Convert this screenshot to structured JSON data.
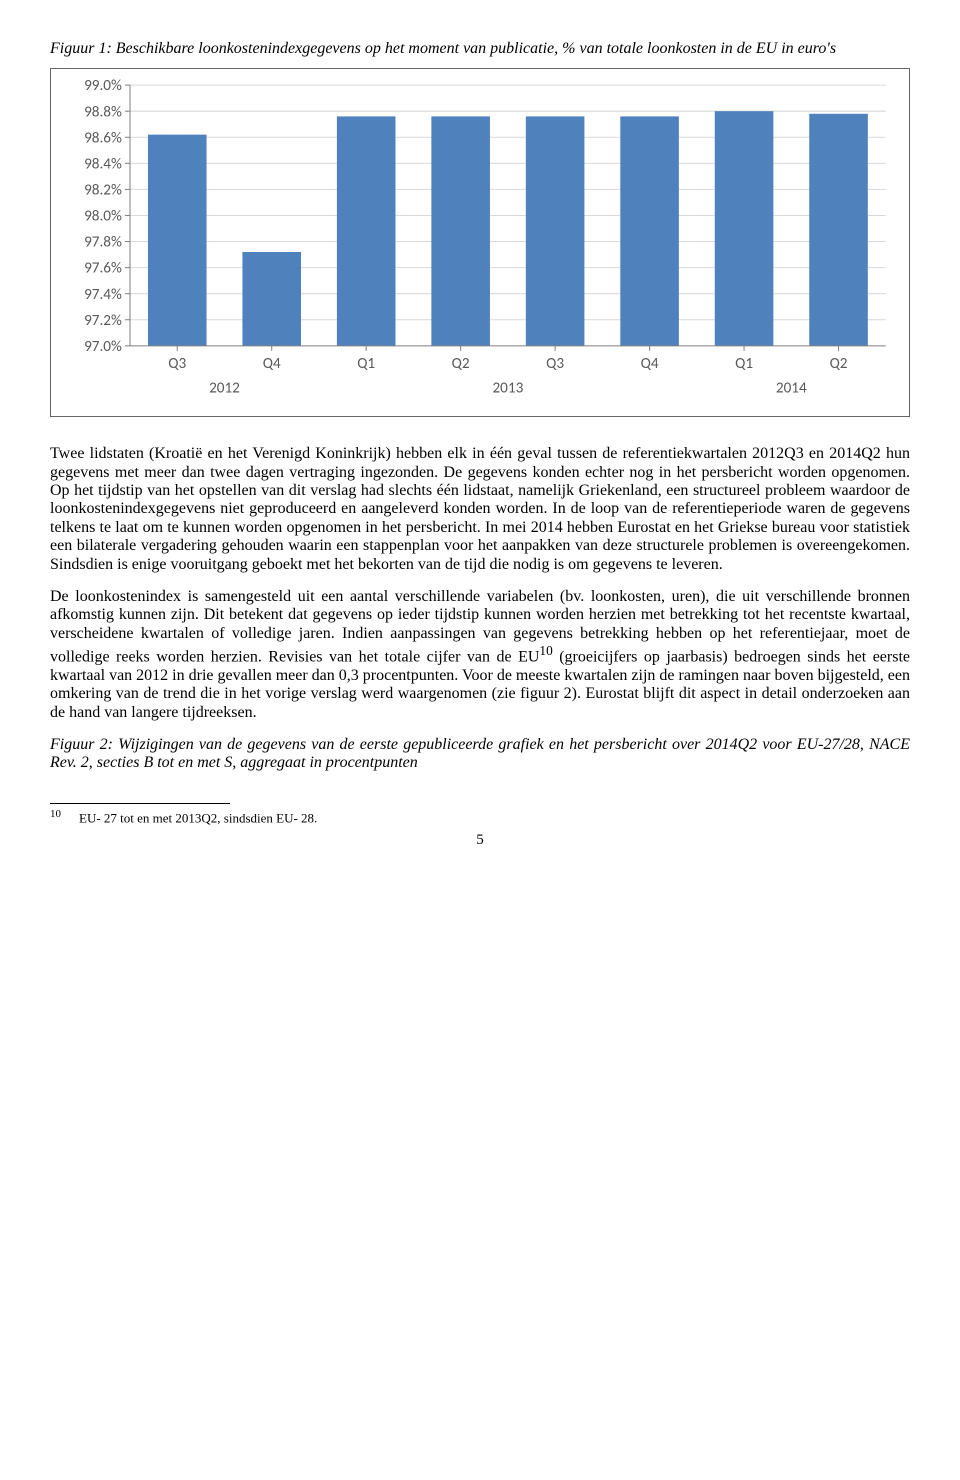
{
  "figure1": {
    "caption": "Figuur 1: Beschikbare loonkostenindexgegevens op het moment van publicatie, % van totale loonkosten in de EU in euro's",
    "type": "bar",
    "ylim": [
      97.0,
      99.0
    ],
    "ytick_step": 0.2,
    "ytick_labels": [
      "97.0%",
      "97.2%",
      "97.4%",
      "97.6%",
      "97.8%",
      "98.0%",
      "98.2%",
      "98.4%",
      "98.6%",
      "98.8%",
      "99.0%"
    ],
    "categories": [
      "Q3",
      "Q4",
      "Q1",
      "Q2",
      "Q3",
      "Q4",
      "Q1",
      "Q2"
    ],
    "year_groups": [
      {
        "label": "2012",
        "span": 2
      },
      {
        "label": "2013",
        "span": 4
      },
      {
        "label": "2014",
        "span": 2
      }
    ],
    "values": [
      98.62,
      97.72,
      98.76,
      98.76,
      98.76,
      98.76,
      98.8,
      98.78
    ],
    "bar_color": "#4f81bd",
    "grid_color": "#d9d9d9",
    "axis_color": "#808080",
    "tick_color": "#808080",
    "background_color": "#ffffff",
    "label_color": "#595959",
    "bar_width_ratio": 0.62
  },
  "paragraphs": {
    "p1": "Twee lidstaten (Kroatië en het Verenigd Koninkrijk) hebben elk in één geval tussen de referentiekwartalen 2012Q3 en 2014Q2 hun gegevens met meer dan twee dagen vertraging ingezonden. De gegevens konden echter nog in het persbericht worden opgenomen. Op het tijdstip van het opstellen van dit verslag had slechts één lidstaat, namelijk Griekenland, een structureel probleem waardoor de loonkostenindexgegevens niet geproduceerd en aangeleverd konden worden. In de loop van de referentieperiode waren de gegevens telkens te laat om te kunnen worden opgenomen in het persbericht. In mei 2014 hebben Eurostat en het Griekse bureau voor statistiek een bilaterale vergadering gehouden waarin een stappenplan voor het aanpakken van deze structurele problemen is overeengekomen. Sindsdien is enige vooruitgang geboekt met het bekorten van de tijd die nodig is om gegevens te leveren.",
    "p2": "De loonkostenindex is samengesteld uit een aantal verschillende variabelen (bv. loonkosten, uren), die uit verschillende bronnen afkomstig kunnen zijn. Dit betekent dat gegevens op ieder tijdstip kunnen worden herzien met betrekking tot het recentste kwartaal, verscheidene kwartalen of volledige jaren. Indien aanpassingen van gegevens betrekking hebben op het referentiejaar, moet de volledige reeks worden herzien. Revisies van het totale cijfer van de EU",
    "p2b": " (groeicijfers op jaarbasis) bedroegen sinds het eerste kwartaal van 2012 in drie gevallen meer dan 0,3 procentpunten. Voor de meeste kwartalen zijn de ramingen naar boven bijgesteld, een omkering van de trend die in het vorige verslag werd waargenomen (zie figuur 2). Eurostat blijft dit aspect in detail onderzoeken aan de hand van langere tijdreeksen.",
    "fn_ref": "10"
  },
  "figure2": {
    "caption": "Figuur 2: Wijzigingen van de gegevens van de eerste gepubliceerde grafiek en het persbericht over 2014Q2 voor EU-27/28, NACE Rev. 2, secties B tot en met S, aggregaat in procentpunten"
  },
  "footnote": {
    "num": "10",
    "text": "EU- 27 tot en met 2013Q2, sindsdien EU- 28."
  },
  "page_num": "5"
}
